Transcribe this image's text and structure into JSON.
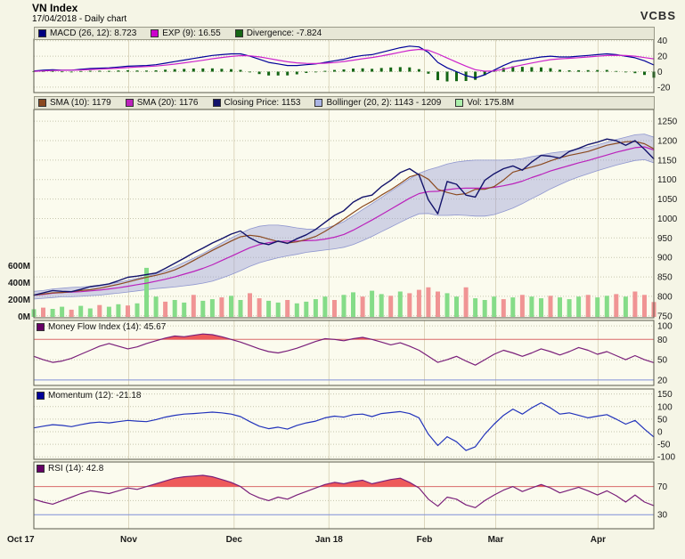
{
  "header": {
    "title": "VN Index",
    "subtitle": "17/04/2018 - Daily chart",
    "brand": "VCBS"
  },
  "x_axis": {
    "labels": [
      {
        "text": "Oct 17",
        "f": 0
      },
      {
        "text": "Nov",
        "f": 0.153
      },
      {
        "text": "Dec",
        "f": 0.323
      },
      {
        "text": "Jan 18",
        "f": 0.476
      },
      {
        "text": "Feb",
        "f": 0.63
      },
      {
        "text": "Mar",
        "f": 0.745
      },
      {
        "text": "Apr",
        "f": 0.91
      }
    ]
  },
  "chart_data": [
    {
      "id": "macd",
      "type": "line",
      "title": "MACD indicator panel",
      "legend": [
        {
          "label": "MACD (26, 12): 8.723",
          "swatch": "#000080"
        },
        {
          "label": "EXP (9): 16.55",
          "swatch": "#cc00cc"
        },
        {
          "label": "Divergence: -7.824",
          "swatch": "#156615"
        }
      ],
      "ylim": [
        -27,
        42
      ],
      "yticks": [
        {
          "v": 40,
          "label": "40"
        },
        {
          "v": 20,
          "label": "20"
        },
        {
          "v": 0,
          "label": "0"
        },
        {
          "v": -20,
          "label": "-20"
        }
      ],
      "series": [
        {
          "name": "Divergence",
          "type": "bar",
          "color": "#156615",
          "values": [
            0.5,
            1,
            1,
            0.2,
            0,
            0.8,
            1.2,
            1.2,
            1.1,
            1.5,
            1.7,
            1.5,
            1.4,
            1.7,
            2.6,
            3.2,
            3.6,
            4,
            4.2,
            4.3,
            3.7,
            3.3,
            2.3,
            -0.5,
            -3.1,
            -5,
            -4.9,
            -4.8,
            -3.4,
            -1.7,
            -0.5,
            1.1,
            2.2,
            2.9,
            4.1,
            4.3,
            3.7,
            4.7,
            5.4,
            5.9,
            5.5,
            3.2,
            -2.7,
            -11,
            -12.6,
            -12.3,
            -12.1,
            -10.6,
            -4.6,
            1,
            4.9,
            6.9,
            6.2,
            5.8,
            5.5,
            4.5,
            2.4,
            1.7,
            1.9,
            2,
            2.1,
            2.2,
            0.8,
            -0.8,
            -2,
            -4.2,
            -7.8
          ]
        },
        {
          "name": "MACD",
          "type": "line",
          "color": "#000099",
          "values": [
            1,
            2,
            2.5,
            2,
            2,
            3,
            4,
            4.5,
            5,
            6,
            7,
            7.5,
            8,
            9,
            11,
            13,
            15,
            17,
            19,
            21,
            22,
            23,
            23,
            20,
            16,
            12,
            10,
            8,
            8,
            9,
            10,
            12,
            14,
            16,
            19,
            21,
            22,
            25,
            28,
            31,
            33,
            32,
            25,
            12,
            5,
            0,
            -5,
            -8,
            -4,
            2,
            8,
            13,
            15,
            17,
            19,
            20,
            19,
            19,
            20,
            21,
            22,
            23,
            22,
            20,
            18,
            14,
            8.7
          ]
        },
        {
          "name": "EXP",
          "type": "line",
          "color": "#cc22cc",
          "values": [
            0.5,
            1,
            1.5,
            1.8,
            2,
            2.2,
            2.8,
            3.3,
            3.9,
            4.5,
            5.3,
            6,
            6.6,
            7.3,
            8.4,
            9.8,
            11.4,
            13,
            14.8,
            16.7,
            18.3,
            19.7,
            20.7,
            20.5,
            19.1,
            17,
            14.9,
            12.8,
            11.4,
            10.7,
            10.5,
            10.9,
            11.8,
            13.1,
            14.9,
            16.7,
            18.3,
            20.3,
            22.6,
            25.1,
            27.5,
            28.8,
            27.7,
            23,
            17.6,
            12.3,
            7.1,
            2.6,
            0.6,
            1,
            3.1,
            6.1,
            8.8,
            11.2,
            13.5,
            15.5,
            16.6,
            17.3,
            18.1,
            19,
            19.9,
            20.8,
            21.2,
            20.8,
            20,
            18.2,
            16.55
          ]
        }
      ]
    },
    {
      "id": "price",
      "type": "line",
      "title": "VN Index price with SMA, Bollinger Bands and volume",
      "legend": [
        {
          "label": "SMA (10): 1179",
          "swatch": "#8b4a20"
        },
        {
          "label": "SMA (20): 1176",
          "swatch": "#bb22bb"
        },
        {
          "label": "Closing Price: 1153",
          "swatch": "#13136b"
        },
        {
          "label": "Bollinger (20, 2): 1143 - 1209",
          "swatch": "#aab4e4"
        },
        {
          "label": "Vol: 175.8M",
          "swatch": "#aaeeaa"
        }
      ],
      "ylim": [
        745,
        1280
      ],
      "yticks": [
        {
          "v": 1250,
          "label": "1250"
        },
        {
          "v": 1200,
          "label": "1200"
        },
        {
          "v": 1150,
          "label": "1150"
        },
        {
          "v": 1100,
          "label": "1100"
        },
        {
          "v": 1050,
          "label": "1050"
        },
        {
          "v": 1000,
          "label": "1000"
        },
        {
          "v": 950,
          "label": "950"
        },
        {
          "v": 900,
          "label": "900"
        },
        {
          "v": 850,
          "label": "850"
        },
        {
          "v": 800,
          "label": "800"
        },
        {
          "v": 750,
          "label": "750"
        }
      ],
      "bollinger": {
        "upper": [
          813,
          815,
          819,
          821,
          823,
          824,
          826,
          829,
          832,
          836,
          841,
          846,
          851,
          858,
          866,
          876,
          887,
          898,
          910,
          923,
          937,
          950,
          962,
          973,
          980,
          983,
          983,
          980,
          976,
          973,
          972,
          975,
          982,
          992,
          1007,
          1023,
          1038,
          1054,
          1070,
          1086,
          1102,
          1116,
          1125,
          1132,
          1140,
          1145,
          1148,
          1150,
          1150,
          1150,
          1150,
          1151,
          1154,
          1159,
          1163,
          1168,
          1171,
          1174,
          1179,
          1183,
          1189,
          1196,
          1203,
          1209,
          1215,
          1217,
          1209
        ],
        "lower": [
          793,
          795,
          797,
          799,
          799,
          800,
          802,
          803,
          806,
          808,
          811,
          814,
          817,
          820,
          822,
          824,
          827,
          830,
          834,
          839,
          847,
          856,
          866,
          877,
          886,
          893,
          899,
          904,
          908,
          913,
          916,
          919,
          922,
          926,
          933,
          943,
          954,
          966,
          978,
          990,
          1002,
          1012,
          1013,
          1008,
          1008,
          1009,
          1008,
          1006,
          1006,
          1010,
          1018,
          1027,
          1038,
          1051,
          1063,
          1076,
          1087,
          1098,
          1107,
          1115,
          1123,
          1130,
          1137,
          1143,
          1149,
          1151,
          1143
        ]
      },
      "volume": {
        "unit": "M",
        "yticks": [
          {
            "v": 600,
            "label": "600M"
          },
          {
            "v": 400,
            "label": "400M"
          },
          {
            "v": 200,
            "label": "200M"
          },
          {
            "v": 0,
            "label": "0M"
          }
        ],
        "colors": "grggrggrggrgggrggrggrggrrggrggggrggrggrgrrrrggrgggrgrggrgggrggrgrrr",
        "values": [
          90,
          110,
          95,
          120,
          85,
          130,
          100,
          140,
          120,
          150,
          135,
          160,
          580,
          240,
          180,
          200,
          170,
          260,
          190,
          210,
          230,
          250,
          200,
          280,
          220,
          190,
          170,
          200,
          160,
          180,
          210,
          240,
          200,
          260,
          290,
          240,
          310,
          270,
          250,
          300,
          280,
          320,
          350,
          300,
          280,
          240,
          350,
          220,
          200,
          240,
          210,
          230,
          260,
          240,
          220,
          250,
          230,
          210,
          240,
          260,
          230,
          250,
          270,
          240,
          300,
          260,
          176
        ]
      },
      "series": [
        {
          "name": "SMA20",
          "type": "line",
          "color": "#bb22bb",
          "values": [
            803,
            805,
            808,
            810,
            811,
            812,
            814,
            816,
            819,
            822,
            826,
            830,
            834,
            839,
            844,
            850,
            857,
            864,
            872,
            881,
            892,
            903,
            914,
            925,
            933,
            938,
            941,
            942,
            942,
            943,
            944,
            947,
            952,
            959,
            970,
            983,
            996,
            1010,
            1024,
            1038,
            1052,
            1064,
            1069,
            1070,
            1074,
            1077,
            1078,
            1078,
            1078,
            1080,
            1084,
            1089,
            1096,
            1105,
            1113,
            1122,
            1129,
            1136,
            1143,
            1149,
            1156,
            1163,
            1170,
            1176,
            1182,
            1184,
            1176
          ]
        },
        {
          "name": "SMA10",
          "type": "line",
          "color": "#8b4a20",
          "values": [
            803,
            806,
            809,
            810,
            812,
            815,
            817,
            821,
            826,
            831,
            837,
            843,
            849,
            854,
            860,
            868,
            879,
            892,
            905,
            918,
            930,
            942,
            953,
            957,
            954,
            947,
            941,
            937,
            940,
            946,
            954,
            967,
            982,
            998,
            1015,
            1031,
            1044,
            1060,
            1074,
            1090,
            1107,
            1114,
            1101,
            1075,
            1067,
            1061,
            1064,
            1075,
            1075,
            1082,
            1099,
            1119,
            1126,
            1132,
            1139,
            1148,
            1156,
            1162,
            1167,
            1172,
            1180,
            1188,
            1193,
            1197,
            1198,
            1192,
            1179
          ]
        },
        {
          "name": "Closing Price",
          "type": "line",
          "color": "#13136b",
          "values": [
            803,
            809,
            815,
            813,
            812,
            818,
            825,
            828,
            832,
            840,
            849,
            852,
            856,
            860,
            872,
            885,
            898,
            912,
            924,
            937,
            948,
            960,
            968,
            950,
            938,
            933,
            942,
            936,
            948,
            958,
            972,
            990,
            1008,
            1020,
            1042,
            1055,
            1060,
            1082,
            1098,
            1118,
            1128,
            1112,
            1048,
            1012,
            1095,
            1088,
            1060,
            1055,
            1098,
            1115,
            1128,
            1135,
            1124,
            1145,
            1162,
            1160,
            1155,
            1172,
            1180,
            1190,
            1196,
            1204,
            1200,
            1188,
            1200,
            1178,
            1153
          ]
        }
      ]
    },
    {
      "id": "mfi",
      "type": "line",
      "title": "Money Flow Index panel",
      "legend": [
        {
          "label": "Money Flow Index (14): 45.67",
          "swatch": "#660066"
        }
      ],
      "ylim": [
        12,
        108
      ],
      "yticks": [
        {
          "v": 100,
          "label": "100"
        },
        {
          "v": 80,
          "label": "80",
          "color": "#cc3333",
          "line": "#d96a6a"
        },
        {
          "v": 50,
          "label": "50"
        },
        {
          "v": 20,
          "label": "20",
          "color": "#3355cc",
          "line": "#8090d8"
        }
      ],
      "fill_above": {
        "threshold": 80,
        "color": "#ee5a5a"
      },
      "series": [
        {
          "name": "Money Flow Index",
          "type": "line",
          "color": "#7a1f7a",
          "values": [
            55,
            50,
            46,
            48,
            52,
            58,
            64,
            70,
            74,
            70,
            66,
            69,
            74,
            78,
            82,
            85,
            84,
            86,
            88,
            87,
            84,
            80,
            76,
            71,
            66,
            62,
            60,
            63,
            67,
            72,
            77,
            81,
            80,
            78,
            81,
            83,
            80,
            76,
            72,
            75,
            70,
            64,
            55,
            46,
            50,
            55,
            48,
            42,
            50,
            58,
            64,
            60,
            55,
            60,
            66,
            62,
            57,
            62,
            68,
            64,
            58,
            62,
            56,
            50,
            56,
            50,
            45.67
          ]
        }
      ]
    },
    {
      "id": "momentum",
      "type": "line",
      "title": "Momentum panel",
      "legend": [
        {
          "label": "Momentum (12): -21.18",
          "swatch": "#000099"
        }
      ],
      "ylim": [
        -110,
        170
      ],
      "yticks": [
        {
          "v": 150,
          "label": "150"
        },
        {
          "v": 100,
          "label": "100"
        },
        {
          "v": 50,
          "label": "50"
        },
        {
          "v": 0,
          "label": "0"
        },
        {
          "v": -50,
          "label": "-50"
        },
        {
          "v": -100,
          "label": "-100"
        }
      ],
      "series": [
        {
          "name": "Momentum",
          "type": "line",
          "color": "#2233bb",
          "values": [
            15,
            22,
            28,
            25,
            20,
            28,
            35,
            38,
            35,
            40,
            45,
            42,
            40,
            48,
            58,
            65,
            70,
            72,
            75,
            78,
            75,
            70,
            60,
            40,
            22,
            12,
            18,
            10,
            25,
            35,
            42,
            55,
            62,
            58,
            68,
            70,
            60,
            72,
            76,
            80,
            72,
            55,
            -10,
            -55,
            -20,
            -40,
            -75,
            -60,
            -10,
            30,
            65,
            90,
            70,
            95,
            115,
            95,
            70,
            75,
            65,
            55,
            62,
            68,
            50,
            30,
            45,
            10,
            -21.18
          ]
        }
      ]
    },
    {
      "id": "rsi",
      "type": "line",
      "title": "RSI panel",
      "legend": [
        {
          "label": "RSI (14): 42.8",
          "swatch": "#660066"
        }
      ],
      "ylim": [
        10,
        105
      ],
      "yticks": [
        {
          "v": 70,
          "label": "70",
          "color": "#cc3333",
          "line": "#d96a6a"
        },
        {
          "v": 50,
          "label": ""
        },
        {
          "v": 30,
          "label": "30",
          "color": "#3355cc",
          "line": "#8090d8"
        }
      ],
      "fill_above": {
        "threshold": 70,
        "color": "#ee5a5a"
      },
      "series": [
        {
          "name": "RSI",
          "type": "line",
          "color": "#7a1f7a",
          "values": [
            52,
            48,
            45,
            50,
            55,
            60,
            64,
            62,
            60,
            64,
            68,
            66,
            70,
            74,
            78,
            82,
            84,
            85,
            86,
            84,
            80,
            76,
            70,
            60,
            54,
            50,
            55,
            52,
            58,
            63,
            68,
            73,
            76,
            74,
            77,
            79,
            74,
            77,
            80,
            82,
            76,
            68,
            52,
            42,
            55,
            52,
            44,
            40,
            50,
            58,
            65,
            70,
            63,
            68,
            73,
            68,
            61,
            65,
            69,
            64,
            58,
            64,
            57,
            48,
            58,
            48,
            42.8
          ]
        }
      ]
    }
  ]
}
